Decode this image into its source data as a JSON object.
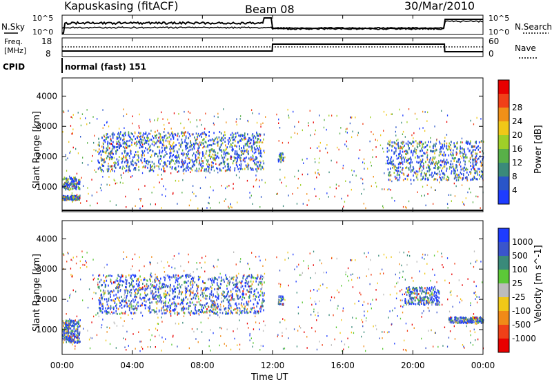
{
  "header": {
    "station": "Kapuskasing (fitACF)",
    "beam": "Beam 08",
    "date": "30/Mar/2010"
  },
  "noise_panel": {
    "left_label": "N.Sky",
    "right_label": "N.Search",
    "left_ticks": [
      "10^5",
      "10^0"
    ],
    "right_ticks": [
      "10^5",
      "10^0"
    ]
  },
  "freq_panel": {
    "left_label_1": "Freq.",
    "left_label_2": "[MHz]",
    "right_label": "Nave",
    "left_ticks": [
      "18",
      "8"
    ],
    "right_ticks": [
      "60",
      "0"
    ]
  },
  "cpid": {
    "label": "CPID",
    "value": "normal (fast) 151"
  },
  "x_axis": {
    "title": "Time UT",
    "ticks": [
      "00:00",
      "04:00",
      "08:00",
      "12:00",
      "16:00",
      "20:00",
      "00:00"
    ]
  },
  "chart_data": [
    {
      "type": "heatmap",
      "quantity": "Power",
      "ylabel": "Slant Range [km]",
      "y_ticks": [
        1000,
        2000,
        3000,
        4000
      ],
      "ylim": [
        180,
        4600
      ],
      "xlim_hours": [
        0,
        24
      ],
      "colorbar_label": "Power [dB]",
      "colorbar_ticks": [
        "4",
        "8",
        "12",
        "16",
        "20",
        "24",
        "28"
      ],
      "colors": [
        "#1e3cff",
        "#2a55c8",
        "#3a8a7a",
        "#58b048",
        "#9fd028",
        "#f0c818",
        "#f09018",
        "#f04018",
        "#e80000"
      ],
      "echo_regions": [
        {
          "t": [
            0.0,
            1.0
          ],
          "range": [
            900,
            1300
          ]
        },
        {
          "t": [
            0.0,
            1.0
          ],
          "range": [
            550,
            700
          ]
        },
        {
          "t": [
            2.0,
            11.5
          ],
          "range": [
            1500,
            2800
          ]
        },
        {
          "t": [
            12.3,
            12.6
          ],
          "range": [
            1800,
            2100
          ]
        },
        {
          "t": [
            18.5,
            24.0
          ],
          "range": [
            1200,
            2500
          ]
        }
      ]
    },
    {
      "type": "heatmap",
      "quantity": "Velocity",
      "ylabel": "Slant Range [km]",
      "y_ticks": [
        1000,
        2000,
        3000,
        4000
      ],
      "ylim": [
        180,
        4600
      ],
      "xlim_hours": [
        0,
        24
      ],
      "colorbar_label": "Velocity [m s^-1]",
      "colorbar_ticks": [
        "1000",
        "500",
        "100",
        "25",
        "-25",
        "-100",
        "-500",
        "-1000"
      ],
      "colors": [
        "#1e3cff",
        "#3a55cc",
        "#3a8a7a",
        "#5cc838",
        "#bcbcbc",
        "#f0c818",
        "#f08a18",
        "#f04018",
        "#e80000"
      ],
      "echo_regions": [
        {
          "t": [
            0.0,
            1.0
          ],
          "range": [
            900,
            1300
          ]
        },
        {
          "t": [
            0.0,
            1.0
          ],
          "range": [
            550,
            900
          ]
        },
        {
          "t": [
            2.0,
            11.5
          ],
          "range": [
            1500,
            2800
          ]
        },
        {
          "t": [
            12.3,
            12.6
          ],
          "range": [
            1800,
            2100
          ]
        },
        {
          "t": [
            19.5,
            21.5
          ],
          "range": [
            1800,
            2400
          ]
        },
        {
          "t": [
            22.0,
            24.0
          ],
          "range": [
            1200,
            1400
          ]
        }
      ]
    }
  ]
}
